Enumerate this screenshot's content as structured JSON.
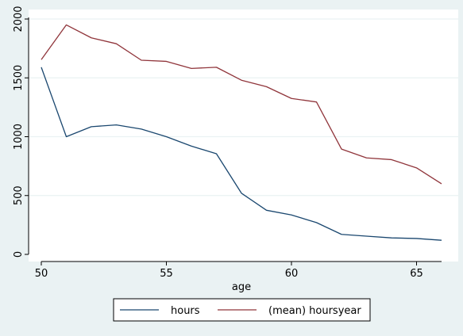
{
  "chart_data": {
    "type": "line",
    "xlabel": "age",
    "ylabel": "",
    "xlim": [
      50,
      66
    ],
    "ylim": [
      0,
      2000
    ],
    "xticks": [
      50,
      55,
      60,
      65
    ],
    "yticks": [
      0,
      500,
      1000,
      1500,
      2000
    ],
    "grid": true,
    "legend_position": "bottom",
    "x": [
      50,
      51,
      52,
      53,
      54,
      55,
      56,
      57,
      58,
      59,
      60,
      61,
      62,
      63,
      64,
      65,
      66
    ],
    "series": [
      {
        "name": "hours",
        "color": "#1a476f",
        "values": [
          1590,
          1000,
          1085,
          1100,
          1065,
          1000,
          920,
          855,
          520,
          375,
          335,
          270,
          170,
          155,
          140,
          135,
          120
        ]
      },
      {
        "name": "(mean) hoursyear",
        "color": "#90353b",
        "values": [
          1655,
          1950,
          1840,
          1790,
          1650,
          1640,
          1580,
          1590,
          1480,
          1425,
          1325,
          1295,
          895,
          820,
          805,
          735,
          600
        ]
      }
    ]
  }
}
